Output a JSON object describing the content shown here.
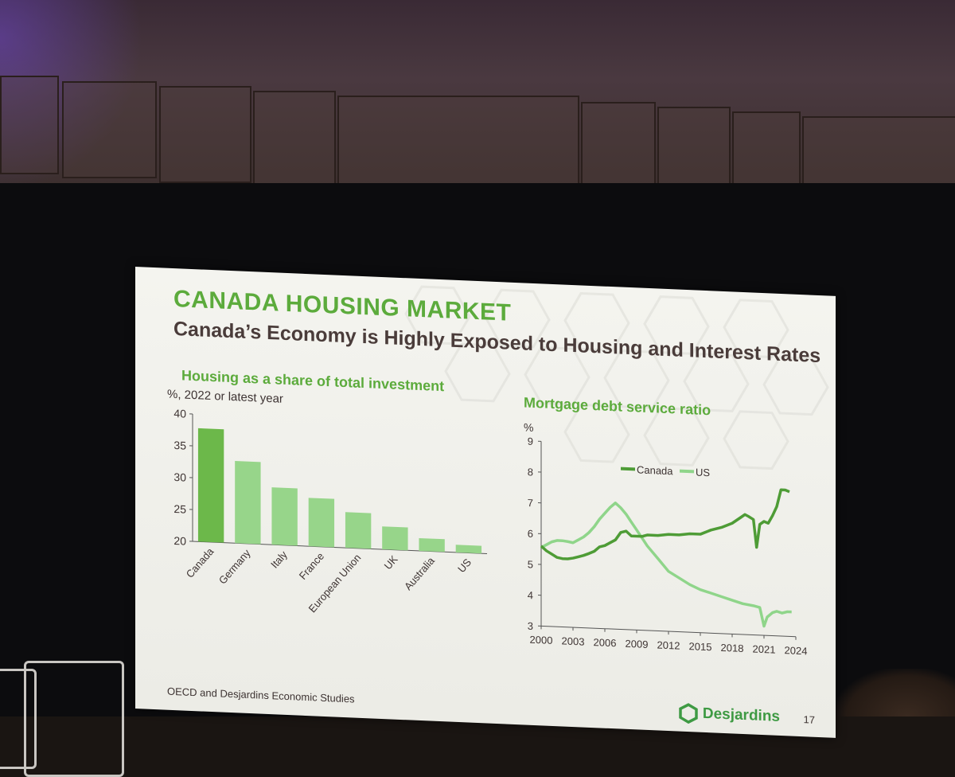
{
  "slide": {
    "title": "CANADA HOUSING MARKET",
    "subtitle": "Canada’s Economy is Highly Exposed to Housing and Interest Rates",
    "source": "OECD and Desjardins Economic Studies",
    "brand": "Desjardins",
    "page_number": "17"
  },
  "colors": {
    "title_green": "#5cab3c",
    "canada_bar": "#6cb84a",
    "other_bars": "#97d58a",
    "canada_line": "#4e9c36",
    "us_line": "#8fd58a",
    "subtitle_text": "#4a3c3a"
  },
  "chart_data": [
    {
      "type": "bar",
      "title": "Housing as a share of total investment",
      "subtitle": "%, 2022 or latest year",
      "categories": [
        "Canada",
        "Germany",
        "Italy",
        "France",
        "European Union",
        "UK",
        "Australia",
        "US"
      ],
      "values": [
        37.8,
        32.9,
        29.0,
        27.6,
        25.6,
        23.6,
        22.0,
        21.2
      ],
      "highlight": "Canada",
      "ylim": [
        20,
        40
      ],
      "yticks": [
        20,
        25,
        30,
        35,
        40
      ],
      "grid": false
    },
    {
      "type": "line",
      "title": "Mortgage debt service ratio",
      "ylabel": "%",
      "ylim": [
        3,
        9
      ],
      "yticks": [
        3,
        4,
        5,
        6,
        7,
        8,
        9
      ],
      "xlim": [
        2000,
        2024
      ],
      "xticks": [
        2000,
        2003,
        2006,
        2009,
        2012,
        2015,
        2018,
        2021,
        2024
      ],
      "legend_position": "top",
      "grid": false,
      "series": [
        {
          "name": "Canada",
          "x": [
            2000,
            2000.5,
            2001,
            2001.5,
            2002,
            2002.5,
            2003,
            2003.5,
            2004,
            2004.5,
            2005,
            2005.5,
            2006,
            2006.5,
            2007,
            2007.5,
            2008,
            2008.5,
            2009,
            2009.5,
            2010,
            2011,
            2012,
            2013,
            2014,
            2015,
            2016,
            2017,
            2018,
            2018.8,
            2019.2,
            2019.5,
            2020,
            2020.3,
            2020.6,
            2021,
            2021.4,
            2021.8,
            2022.2,
            2022.6,
            2023,
            2023.4
          ],
          "values": [
            5.6,
            5.45,
            5.35,
            5.25,
            5.22,
            5.22,
            5.25,
            5.3,
            5.35,
            5.42,
            5.5,
            5.65,
            5.7,
            5.8,
            5.9,
            6.15,
            6.2,
            6.05,
            6.05,
            6.05,
            6.1,
            6.1,
            6.15,
            6.15,
            6.2,
            6.2,
            6.35,
            6.45,
            6.6,
            6.8,
            6.9,
            6.85,
            6.75,
            5.85,
            6.6,
            6.7,
            6.65,
            6.9,
            7.2,
            7.75,
            7.75,
            7.7
          ]
        },
        {
          "name": "US",
          "x": [
            2000,
            2000.5,
            2001,
            2001.5,
            2002,
            2002.5,
            2003,
            2003.5,
            2004,
            2004.5,
            2005,
            2005.5,
            2006,
            2006.5,
            2007,
            2007.5,
            2008,
            2008.5,
            2009,
            2009.5,
            2010,
            2011,
            2012,
            2013,
            2014,
            2015,
            2016,
            2017,
            2018,
            2019,
            2020,
            2020.6,
            2021,
            2021.3,
            2021.8,
            2022.2,
            2022.7,
            2023.2,
            2023.6
          ],
          "values": [
            5.55,
            5.65,
            5.75,
            5.8,
            5.8,
            5.78,
            5.75,
            5.85,
            5.95,
            6.1,
            6.3,
            6.55,
            6.75,
            6.95,
            7.1,
            6.95,
            6.75,
            6.5,
            6.25,
            6.0,
            5.75,
            5.35,
            4.95,
            4.75,
            4.55,
            4.4,
            4.3,
            4.2,
            4.1,
            4.0,
            3.95,
            3.9,
            3.3,
            3.6,
            3.75,
            3.8,
            3.75,
            3.8,
            3.8
          ]
        }
      ]
    }
  ]
}
